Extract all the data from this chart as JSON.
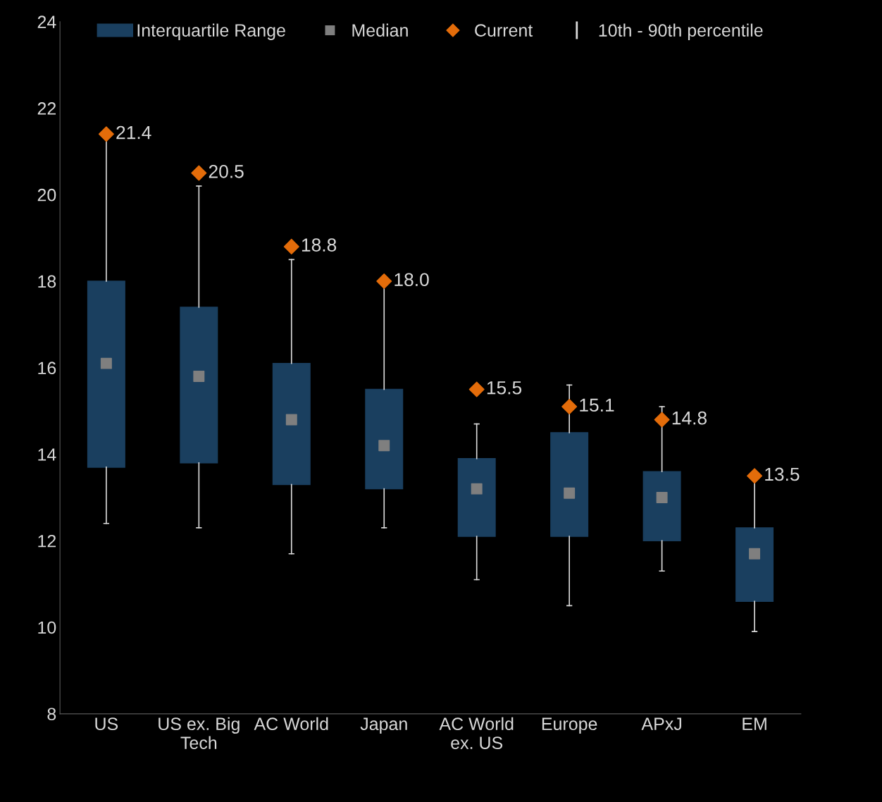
{
  "chart_data": {
    "type": "box",
    "categories": [
      "US",
      "US ex. Big Tech",
      "AC World",
      "Japan",
      "AC World ex. US",
      "Europe",
      "APxJ",
      "EM"
    ],
    "ylim": [
      8,
      24
    ],
    "yticks": [
      8,
      10,
      12,
      14,
      16,
      18,
      20,
      22,
      24
    ],
    "grid": false,
    "legend": "top",
    "annotations": [
      "Median",
      "10th - 90th percentile"
    ],
    "series": [
      {
        "name": "Interquartile Range",
        "color": "#1a3f5f",
        "boxes": [
          {
            "low": 12.4,
            "q1": 13.7,
            "median": 16.1,
            "q3": 18.0,
            "high": 21.4
          },
          {
            "low": 12.3,
            "q1": 13.8,
            "median": 15.8,
            "q3": 17.4,
            "high": 20.2
          },
          {
            "low": 11.7,
            "q1": 13.3,
            "median": 14.8,
            "q3": 16.1,
            "high": 18.5
          },
          {
            "low": 12.3,
            "q1": 13.2,
            "median": 14.2,
            "q3": 15.5,
            "high": 18.0
          },
          {
            "low": 11.1,
            "q1": 12.1,
            "median": 13.2,
            "q3": 13.9,
            "high": 14.7
          },
          {
            "low": 10.5,
            "q1": 12.1,
            "median": 13.1,
            "q3": 14.5,
            "high": 15.6
          },
          {
            "low": 11.3,
            "q1": 12.0,
            "median": 13.0,
            "q3": 13.6,
            "high": 15.1
          },
          {
            "low": 9.9,
            "q1": 10.6,
            "median": 11.7,
            "q3": 12.3,
            "high": 13.4
          }
        ]
      },
      {
        "name": "Current",
        "type": "scatter",
        "marker": "diamond",
        "color": "#e36c0a",
        "x": [
          "US",
          "US ex. Big Tech",
          "AC World",
          "Japan",
          "AC World ex. US",
          "Europe",
          "APxJ",
          "EM"
        ],
        "values": [
          21.4,
          20.5,
          18.8,
          18.0,
          15.5,
          15.1,
          14.8,
          13.5
        ],
        "value_labels": [
          "21.4",
          "20.5",
          "18.8",
          "18.0",
          "15.5",
          "15.1",
          "14.8",
          "13.5"
        ]
      }
    ]
  }
}
